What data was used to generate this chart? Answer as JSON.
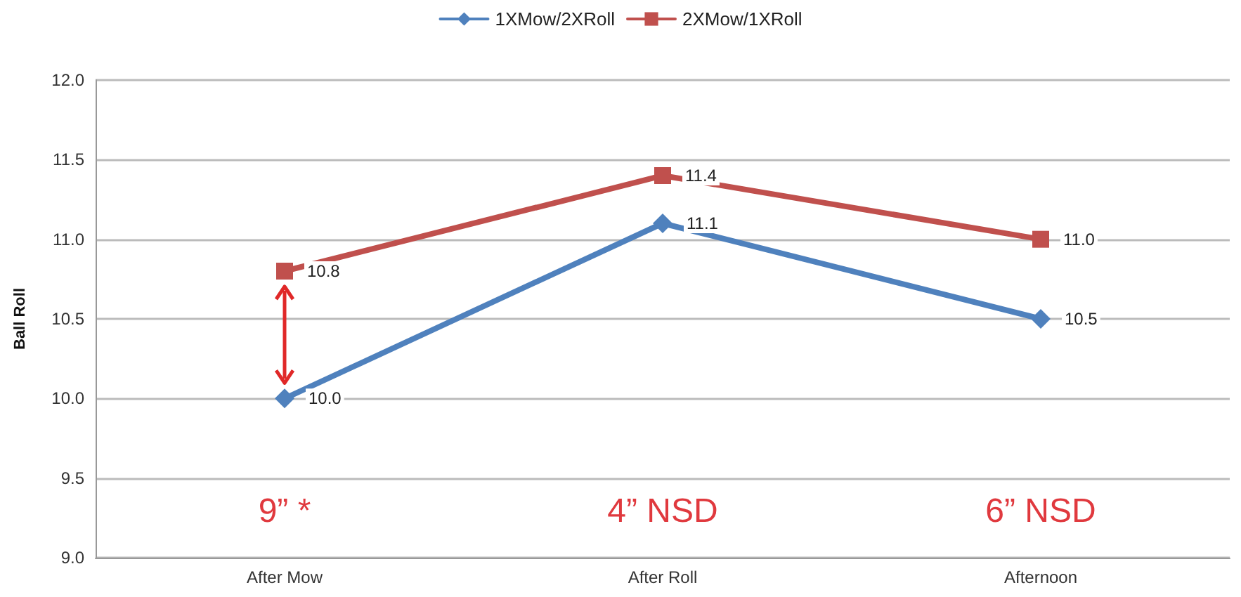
{
  "chart_data": {
    "type": "line",
    "ylabel": "Ball Roll",
    "categories": [
      "After Mow",
      "After Roll",
      "Afternoon"
    ],
    "series": [
      {
        "name": "1XMow/2XRoll",
        "color": "#4f81bd",
        "marker": "diamond",
        "values": [
          10.0,
          11.1,
          10.5
        ],
        "value_labels": [
          "10.0",
          "11.1",
          "10.5"
        ]
      },
      {
        "name": "2XMow/1XRoll",
        "color": "#c0504d",
        "marker": "square",
        "values": [
          10.8,
          11.4,
          11.0
        ],
        "value_labels": [
          "10.8",
          "11.4",
          "11.0"
        ]
      }
    ],
    "ylim": [
      9.0,
      12.0
    ],
    "yticks": [
      {
        "value": 9.0,
        "label": "9.0"
      },
      {
        "value": 9.5,
        "label": "9.5"
      },
      {
        "value": 10.0,
        "label": "10.0"
      },
      {
        "value": 10.5,
        "label": "10.5"
      },
      {
        "value": 11.0,
        "label": "11.0"
      },
      {
        "value": 11.5,
        "label": "11.5"
      },
      {
        "value": 12.0,
        "label": "12.0"
      }
    ],
    "grid": "y",
    "legend": "top",
    "annotations": [
      "9” *",
      "4” NSD",
      "6” NSD"
    ]
  }
}
